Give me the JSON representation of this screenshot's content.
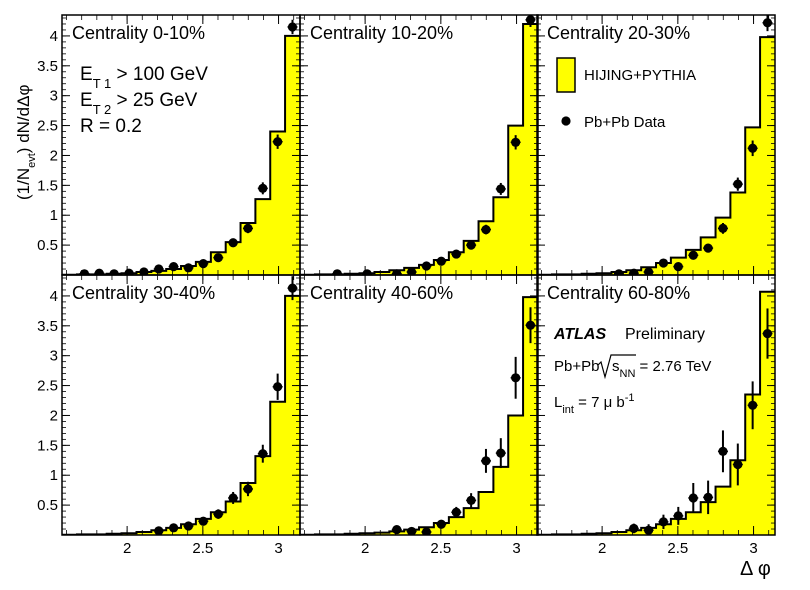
{
  "chart_data": {
    "type": "histogram-grid",
    "ylabel": "(1/N_evt) dN/dΔφ",
    "ylabel_parts": {
      "a": "(1/N",
      "sub": "evt",
      "b": ") dN/dΔφ"
    },
    "xlabel": "Δ φ",
    "xlim": [
      1.57,
      3.1416
    ],
    "ylim": [
      0,
      4.35
    ],
    "x_ticks": [
      {
        "v": 2,
        "label": "2"
      },
      {
        "v": 2.5,
        "label": "2.5"
      },
      {
        "v": 3,
        "label": "3"
      }
    ],
    "y_ticks": [
      {
        "v": 0.5,
        "label": "0.5"
      },
      {
        "v": 1,
        "label": "1"
      },
      {
        "v": 1.5,
        "label": "1.5"
      },
      {
        "v": 2,
        "label": "2"
      },
      {
        "v": 2.5,
        "label": "2.5"
      },
      {
        "v": 3,
        "label": "3"
      },
      {
        "v": 3.5,
        "label": "3.5"
      },
      {
        "v": 4,
        "label": "4"
      }
    ],
    "bin_edges": [
      1.571,
      1.669,
      1.767,
      1.865,
      1.963,
      2.062,
      2.16,
      2.258,
      2.356,
      2.454,
      2.553,
      2.651,
      2.749,
      2.847,
      2.945,
      3.043,
      3.142
    ],
    "bin_centers": [
      1.62,
      1.718,
      1.816,
      1.914,
      2.013,
      2.111,
      2.209,
      2.307,
      2.405,
      2.503,
      2.602,
      2.7,
      2.798,
      2.896,
      2.994,
      3.092
    ],
    "legend": {
      "mc": "HIJING+PYTHIA",
      "data": "Pb+Pb Data"
    },
    "cuts": {
      "et1": {
        "a": "E",
        "sub": "T 1",
        "b": " > 100 GeV"
      },
      "et2": {
        "a": "E",
        "sub": "T 2",
        "b": " > 25 GeV"
      },
      "r": "R = 0.2"
    },
    "atlas": {
      "name": "ATLAS",
      "status": "Preliminary",
      "system": "Pb+Pb",
      "sqrt": "s",
      "sqrt_sub": "NN",
      "energy": " = 2.76 TeV",
      "lumi": {
        "a": "L",
        "sub": "int",
        "b": " = 7 μ b",
        "sup": "-1"
      }
    },
    "panels": [
      {
        "title": "Centrality  0-10%",
        "mc": [
          0.005,
          0.01,
          0.01,
          0.02,
          0.03,
          0.05,
          0.07,
          0.1,
          0.15,
          0.22,
          0.38,
          0.55,
          0.87,
          1.27,
          2.4,
          4.0
        ],
        "data": [
          0.02,
          0.03,
          0.02,
          0.03,
          0.05,
          0.1,
          0.14,
          0.12,
          0.19,
          0.29,
          0.54,
          0.78,
          1.45,
          2.23,
          4.15
        ],
        "err": [
          0.02,
          0.02,
          0.02,
          0.03,
          0.03,
          0.04,
          0.04,
          0.04,
          0.05,
          0.06,
          0.07,
          0.08,
          0.1,
          0.12,
          0.12
        ]
      },
      {
        "title": "Centrality 10-20%",
        "mc": [
          0.005,
          0.01,
          0.01,
          0.02,
          0.03,
          0.05,
          0.08,
          0.12,
          0.17,
          0.25,
          0.38,
          0.57,
          0.9,
          1.3,
          2.5,
          4.2
        ],
        "data": [
          0.02,
          null,
          0.02,
          null,
          0.02,
          0.05,
          0.15,
          0.23,
          0.35,
          0.5,
          0.76,
          1.44,
          2.22,
          4.27
        ],
        "err": [
          0.02,
          0,
          0.02,
          0,
          0.02,
          0.03,
          0.04,
          0.05,
          0.06,
          0.07,
          0.08,
          0.1,
          0.12,
          0.12
        ]
      },
      {
        "title": "Centrality 20-30%",
        "mc": [
          0.005,
          0.01,
          0.01,
          0.02,
          0.03,
          0.05,
          0.08,
          0.13,
          0.2,
          0.29,
          0.42,
          0.63,
          0.96,
          1.38,
          2.47,
          3.98
        ],
        "data": [
          0.02,
          0.03,
          0.05,
          0.2,
          0.14,
          0.33,
          0.45,
          0.78,
          1.52,
          2.12,
          4.22
        ],
        "err": [
          0.02,
          0.02,
          0.03,
          0.05,
          0.05,
          0.06,
          0.07,
          0.09,
          0.11,
          0.13,
          0.14
        ]
      },
      {
        "title": "Centrality 30-40%",
        "mc": [
          0.005,
          0.01,
          0.01,
          0.02,
          0.03,
          0.05,
          0.08,
          0.12,
          0.18,
          0.27,
          0.38,
          0.56,
          0.87,
          1.32,
          2.23,
          4.0
        ],
        "data": [
          0.07,
          0.12,
          0.15,
          0.23,
          0.35,
          0.62,
          0.77,
          1.36,
          2.48,
          4.13
        ],
        "err": [
          0.04,
          0.05,
          0.05,
          0.07,
          0.08,
          0.1,
          0.12,
          0.15,
          0.22,
          0.2
        ]
      },
      {
        "title": "Centrality 40-60%",
        "mc": [
          0.005,
          0.01,
          0.01,
          0.02,
          0.03,
          0.04,
          0.06,
          0.09,
          0.13,
          0.2,
          0.3,
          0.45,
          0.72,
          1.14,
          2.0,
          3.98
        ],
        "data": [
          0.09,
          0.06,
          0.05,
          0.18,
          0.38,
          0.58,
          1.24,
          1.37,
          2.63,
          3.51
        ],
        "err": [
          0.04,
          0.05,
          0.05,
          0.07,
          0.09,
          0.12,
          0.2,
          0.25,
          0.35,
          0.3
        ]
      },
      {
        "title": "Centrality 60-80%",
        "mc": [
          0.005,
          0.01,
          0.01,
          0.02,
          0.03,
          0.05,
          0.08,
          0.12,
          0.18,
          0.27,
          0.38,
          0.55,
          0.81,
          1.25,
          2.35,
          4.07
        ],
        "data": [
          0.11,
          0.08,
          0.22,
          0.32,
          0.62,
          0.63,
          1.4,
          1.18,
          2.17,
          3.37
        ],
        "err": [
          0.08,
          0.1,
          0.12,
          0.15,
          0.25,
          0.28,
          0.35,
          0.35,
          0.4,
          0.42
        ]
      }
    ]
  }
}
